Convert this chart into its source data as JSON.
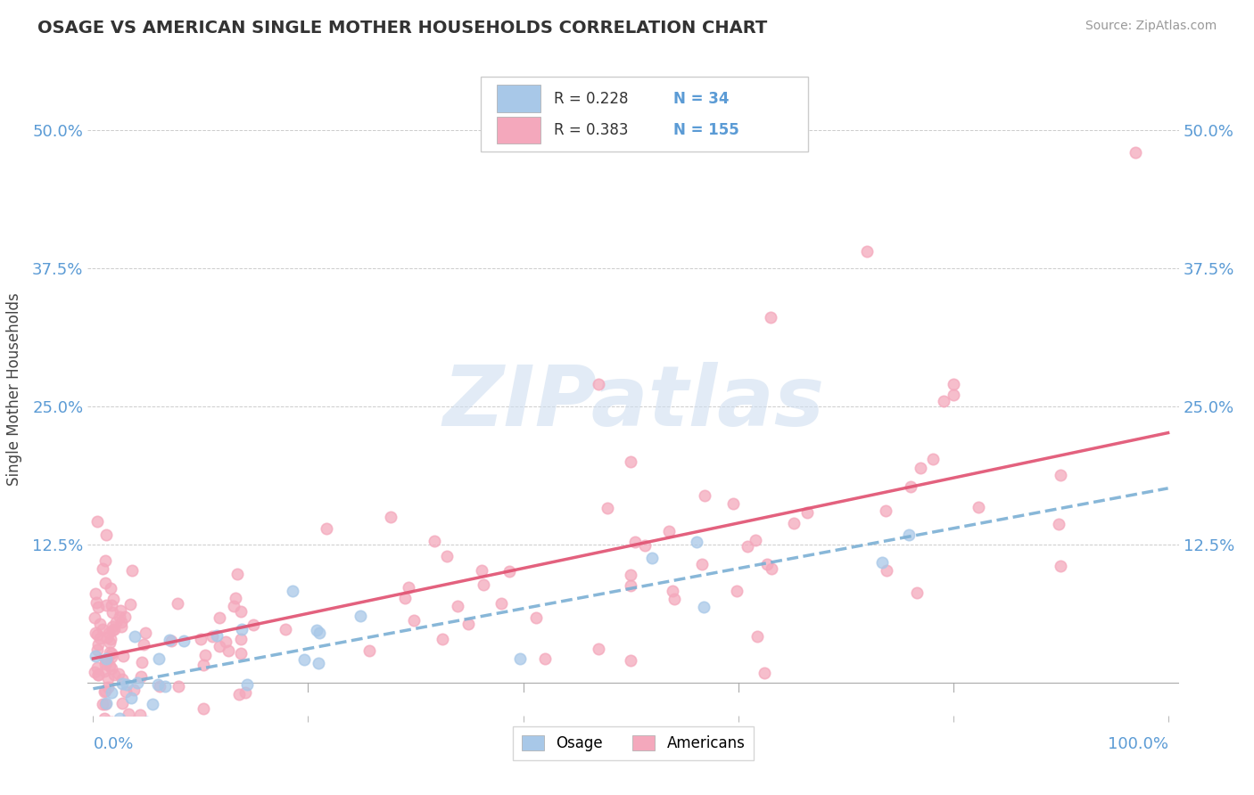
{
  "title": "OSAGE VS AMERICAN SINGLE MOTHER HOUSEHOLDS CORRELATION CHART",
  "source": "Source: ZipAtlas.com",
  "ylabel": "Single Mother Households",
  "legend_osage_R": "0.228",
  "legend_osage_N": "34",
  "legend_american_R": "0.383",
  "legend_american_N": "155",
  "osage_color": "#a8c8e8",
  "american_color": "#f4a8bc",
  "osage_line_color": "#7bafd4",
  "american_line_color": "#e05070",
  "background_color": "#ffffff",
  "grid_color": "#cccccc",
  "title_color": "#333333",
  "axis_label_color": "#5b9bd5",
  "watermark_color": "#d0dff0",
  "watermark_text": "ZIPatlas",
  "ytick_vals": [
    0.0,
    0.125,
    0.25,
    0.375,
    0.5
  ],
  "ytick_labels": [
    "",
    "12.5%",
    "25.0%",
    "37.5%",
    "50.0%"
  ],
  "ylim_min": -0.03,
  "ylim_max": 0.56,
  "xlim_min": -0.005,
  "xlim_max": 1.01
}
